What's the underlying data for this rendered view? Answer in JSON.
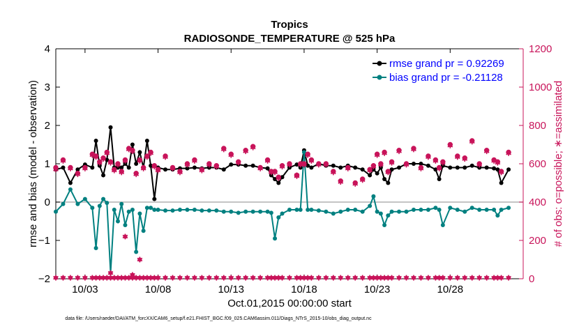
{
  "chart_data": {
    "type": "line",
    "title": "Tropics",
    "subtitle": "RADIOSONDE_TEMPERATURE @ 525 hPa",
    "xlabel": "Oct.01,2015 00:00:00 start",
    "ylabel": "rmse and bias (model - observation)",
    "y2label": "# of obs: o=possible; ∗=assimilated",
    "footnote": "data file: /Users/raeder/DAI/ATM_forcXX/CAM6_setup/f.e21.FHIST_BGC.f09_025.CAM6assim.011/Diags_NTrS_2015-10/obs_diag_output.nc",
    "xlim": [
      1,
      33
    ],
    "ylim": [
      -2,
      4
    ],
    "y2lim": [
      0,
      1200
    ],
    "xticks": [
      3,
      8,
      13,
      18,
      23,
      28
    ],
    "xtick_labels": [
      "10/03",
      "10/08",
      "10/13",
      "10/18",
      "10/23",
      "10/28"
    ],
    "yticks": [
      -2,
      -1,
      0,
      1,
      2,
      3,
      4
    ],
    "ytick_labels": [
      "−2",
      "−1",
      "0",
      "1",
      "2",
      "3",
      "4"
    ],
    "y2ticks": [
      0,
      200,
      400,
      600,
      800,
      1000,
      1200
    ],
    "y2tick_labels": [
      "0",
      "200",
      "400",
      "600",
      "800",
      "1000",
      "1200"
    ],
    "legend_position": "top-right",
    "legend": [
      {
        "name": "rmse  grand pr = 0.92269",
        "color": "#000000"
      },
      {
        "name": "bias  grand pr = -0.21128",
        "color": "#008080"
      }
    ],
    "zero_line_color": "#b0b0b0",
    "axis_left_color": "#000000",
    "axis_right_color": "#c8145a",
    "series": [
      {
        "name": "rmse",
        "color": "#000000",
        "x": [
          1.0,
          1.5,
          2.0,
          2.5,
          3.0,
          3.5,
          3.75,
          4.0,
          4.25,
          4.5,
          4.75,
          5.0,
          5.25,
          5.5,
          5.75,
          6.0,
          6.25,
          6.5,
          6.75,
          7.0,
          7.25,
          7.5,
          7.75,
          8.0,
          8.5,
          9.0,
          9.5,
          10.0,
          10.5,
          11.0,
          11.5,
          12.0,
          12.5,
          13.0,
          13.5,
          14.0,
          14.5,
          15.0,
          15.5,
          15.75,
          16.0,
          16.25,
          16.5,
          17.0,
          17.5,
          17.75,
          18.0,
          18.25,
          18.5,
          19.0,
          19.5,
          20.0,
          20.5,
          21.0,
          21.5,
          22.0,
          22.5,
          22.75,
          23.0,
          23.25,
          23.5,
          23.75,
          24.0,
          24.5,
          25.0,
          25.5,
          26.0,
          26.5,
          27.0,
          27.25,
          27.5,
          28.0,
          28.5,
          29.0,
          29.5,
          30.0,
          30.5,
          31.0,
          31.25,
          31.5,
          32.0
        ],
        "y": [
          0.85,
          0.9,
          0.5,
          0.85,
          0.98,
          0.9,
          1.6,
          0.95,
          0.7,
          1.1,
          1.95,
          0.9,
          0.9,
          0.9,
          1.0,
          0.9,
          1.5,
          1.0,
          1.3,
          0.9,
          1.6,
          0.95,
          0.08,
          0.9,
          0.85,
          0.85,
          0.88,
          0.88,
          0.9,
          0.88,
          0.9,
          0.9,
          0.85,
          0.98,
          0.98,
          0.95,
          0.95,
          0.9,
          0.88,
          0.7,
          0.6,
          0.5,
          0.65,
          0.9,
          0.98,
          0.9,
          1.35,
          0.95,
          0.9,
          1.0,
          0.95,
          0.95,
          0.9,
          0.95,
          0.9,
          0.85,
          0.7,
          0.85,
          0.75,
          0.9,
          0.6,
          0.5,
          0.85,
          0.9,
          1.0,
          1.0,
          1.0,
          0.95,
          0.85,
          0.6,
          0.95,
          0.9,
          0.9,
          0.9,
          0.95,
          0.9,
          0.9,
          0.88,
          0.85,
          0.5,
          0.85
        ]
      },
      {
        "name": "bias",
        "color": "#008080",
        "x": [
          1.0,
          1.5,
          2.0,
          2.5,
          3.0,
          3.5,
          3.75,
          4.0,
          4.25,
          4.5,
          4.75,
          5.0,
          5.25,
          5.5,
          5.75,
          6.0,
          6.25,
          6.5,
          6.75,
          7.0,
          7.25,
          7.5,
          7.75,
          8.0,
          8.5,
          9.0,
          9.5,
          10.0,
          10.5,
          11.0,
          11.5,
          12.0,
          12.5,
          13.0,
          13.5,
          14.0,
          14.5,
          15.0,
          15.5,
          15.75,
          16.0,
          16.25,
          16.5,
          17.0,
          17.5,
          17.75,
          18.0,
          18.25,
          18.5,
          19.0,
          19.5,
          20.0,
          20.5,
          21.0,
          21.5,
          22.0,
          22.5,
          22.75,
          23.0,
          23.25,
          23.5,
          23.75,
          24.0,
          24.5,
          25.0,
          25.5,
          26.0,
          26.5,
          27.0,
          27.25,
          27.5,
          28.0,
          28.5,
          29.0,
          29.5,
          30.0,
          30.5,
          31.0,
          31.25,
          31.5,
          32.0
        ],
        "y": [
          -0.25,
          -0.05,
          0.33,
          -0.05,
          0.08,
          -0.15,
          -1.2,
          -0.1,
          0.08,
          -0.02,
          -1.85,
          -0.2,
          -0.5,
          -0.05,
          -0.6,
          -0.25,
          -0.2,
          -1.3,
          -0.3,
          -0.75,
          -0.15,
          -0.15,
          -0.2,
          -0.2,
          -0.22,
          -0.22,
          -0.2,
          -0.2,
          -0.2,
          -0.22,
          -0.22,
          -0.22,
          -0.25,
          -0.25,
          -0.28,
          -0.25,
          -0.25,
          -0.25,
          -0.25,
          -0.28,
          -0.95,
          -0.4,
          -0.3,
          -0.2,
          -0.2,
          -0.2,
          1.3,
          -0.2,
          -0.2,
          -0.22,
          -0.25,
          -0.3,
          -0.25,
          -0.2,
          -0.2,
          -0.25,
          -0.1,
          0.15,
          -0.25,
          -0.3,
          -0.6,
          -0.35,
          -0.25,
          -0.25,
          -0.25,
          -0.2,
          -0.2,
          -0.2,
          -0.15,
          -0.2,
          -0.6,
          -0.15,
          -0.2,
          -0.25,
          -0.15,
          -0.2,
          -0.2,
          -0.2,
          -0.35,
          -0.2,
          -0.15
        ]
      },
      {
        "name": "possible",
        "color": "#c8145a",
        "x": [
          1.0,
          1.5,
          2.0,
          2.5,
          3.0,
          3.5,
          3.75,
          4.0,
          4.25,
          4.5,
          4.75,
          5.0,
          5.25,
          5.5,
          5.75,
          6.0,
          6.25,
          6.5,
          6.75,
          7.0,
          7.25,
          7.5,
          7.75,
          8.0,
          8.5,
          9.0,
          9.5,
          10.0,
          10.5,
          11.0,
          11.5,
          12.0,
          12.5,
          13.0,
          13.5,
          14.0,
          14.5,
          15.0,
          15.5,
          15.75,
          16.0,
          16.25,
          16.5,
          17.0,
          17.5,
          17.75,
          18.0,
          18.25,
          18.5,
          19.0,
          19.5,
          20.0,
          20.5,
          21.0,
          21.5,
          22.0,
          22.5,
          22.75,
          23.0,
          23.25,
          23.5,
          23.75,
          24.0,
          24.5,
          25.0,
          25.5,
          26.0,
          26.5,
          27.0,
          27.25,
          27.5,
          28.0,
          28.5,
          29.0,
          29.5,
          30.0,
          30.5,
          31.0,
          31.25,
          31.5,
          32.0
        ],
        "y": [
          580,
          620,
          580,
          550,
          580,
          650,
          640,
          610,
          630,
          660,
          610,
          570,
          600,
          560,
          620,
          680,
          670,
          550,
          620,
          580,
          640,
          660,
          590,
          570,
          640,
          580,
          560,
          600,
          620,
          570,
          600,
          590,
          680,
          650,
          610,
          670,
          690,
          580,
          620,
          560,
          560,
          530,
          590,
          600,
          540,
          600,
          600,
          650,
          620,
          600,
          600,
          560,
          510,
          580,
          500,
          520,
          570,
          590,
          650,
          600,
          660,
          560,
          610,
          670,
          600,
          680,
          580,
          640,
          620,
          580,
          610,
          700,
          640,
          630,
          720,
          600,
          670,
          620,
          610,
          560,
          660
        ]
      },
      {
        "name": "assimilated",
        "color": "#c8145a",
        "x": [
          1.0,
          1.5,
          2.0,
          2.5,
          3.0,
          3.5,
          3.75,
          4.0,
          4.25,
          4.5,
          4.75,
          5.0,
          5.25,
          5.5,
          5.75,
          6.0,
          6.25,
          6.5,
          6.75,
          7.0,
          7.25,
          7.5,
          7.75,
          8.0,
          8.5,
          9.0,
          9.5,
          10.0,
          10.5,
          11.0,
          11.5,
          12.0,
          12.5,
          13.0,
          13.5,
          14.0,
          14.5,
          15.0,
          15.5,
          15.75,
          16.0,
          16.25,
          16.5,
          17.0,
          17.5,
          17.75,
          18.0,
          18.25,
          18.5,
          19.0,
          19.5,
          20.0,
          20.5,
          21.0,
          21.5,
          22.0,
          22.5,
          22.75,
          23.0,
          23.25,
          23.5,
          23.75,
          24.0,
          24.5,
          25.0,
          25.5,
          26.0,
          26.5,
          27.0,
          27.25,
          27.5,
          28.0,
          28.5,
          29.0,
          29.5,
          30.0,
          30.5,
          31.0,
          31.25,
          31.5,
          32.0
        ],
        "y": [
          570,
          615,
          575,
          545,
          575,
          645,
          635,
          605,
          625,
          655,
          605,
          565,
          595,
          555,
          615,
          675,
          665,
          545,
          615,
          575,
          635,
          655,
          585,
          565,
          635,
          575,
          555,
          595,
          615,
          565,
          595,
          585,
          675,
          645,
          605,
          665,
          685,
          575,
          615,
          555,
          555,
          525,
          585,
          595,
          535,
          595,
          595,
          645,
          615,
          595,
          595,
          555,
          505,
          575,
          495,
          515,
          565,
          585,
          645,
          595,
          655,
          555,
          605,
          665,
          595,
          675,
          575,
          635,
          615,
          575,
          605,
          695,
          635,
          625,
          715,
          595,
          665,
          615,
          605,
          555,
          655
        ]
      }
    ],
    "scatter_markers_bottom": [
      {
        "name": "possible-low",
        "color": "#c8145a",
        "value": 5
      },
      {
        "name": "assimilated-low",
        "color": "#c8145a",
        "value": 5
      }
    ],
    "outliers": [
      {
        "series": "possible",
        "x": 4.75,
        "y": 30
      },
      {
        "series": "possible",
        "x": 6.25,
        "y": 20
      },
      {
        "series": "possible",
        "x": 5.75,
        "y": 220
      },
      {
        "series": "possible",
        "x": 6.75,
        "y": 100
      },
      {
        "series": "possible",
        "x": 17.5,
        "y": 540
      }
    ]
  }
}
